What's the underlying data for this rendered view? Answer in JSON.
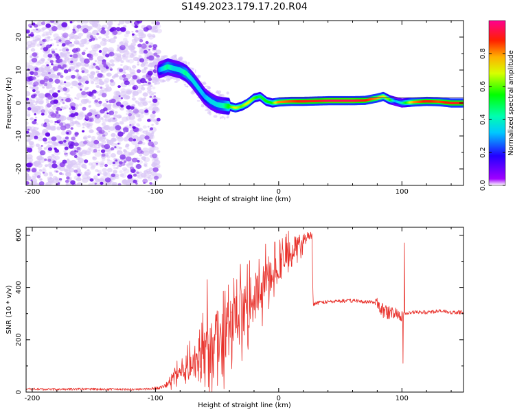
{
  "title": "S149.2023.179.17.20.R04",
  "colors": {
    "snr_line": "#e8302a",
    "dot_purple": "#7a1fe0",
    "dot_light": "#d9c6f6",
    "axes": "#000000"
  },
  "colorbar": {
    "label": "Normalized spectral amplitude",
    "ticks": [
      "0.0",
      "0.2",
      "0.4",
      "0.6",
      "0.8"
    ],
    "tick_values": [
      0.0,
      0.2,
      0.4,
      0.6,
      0.8
    ],
    "range": [
      0,
      1
    ],
    "colormap": "gist_rainbow_r"
  },
  "chart_data": [
    {
      "type": "heatmap",
      "title": "S149.2023.179.17.20.R04",
      "xlabel": "Height of straight line (km)",
      "ylabel": "Frequency (Hz)",
      "xlim": [
        -205,
        150
      ],
      "ylim": [
        -25,
        25
      ],
      "xticks": [
        -200,
        -100,
        0,
        100
      ],
      "xtick_labels": [
        "-200",
        "-100",
        "0",
        "100"
      ],
      "yticks": [
        -20,
        -10,
        0,
        10,
        20
      ],
      "ytick_labels": [
        "-20",
        "-10",
        "0",
        "10",
        "20"
      ],
      "noise_region_x": [
        -205,
        -97
      ],
      "ridge": {
        "x": [
          -97,
          -90,
          -85,
          -80,
          -75,
          -70,
          -65,
          -60,
          -55,
          -50,
          -45,
          -40,
          -35,
          -30,
          -25,
          -20,
          -15,
          -10,
          -5,
          0,
          10,
          20,
          30,
          40,
          50,
          60,
          70,
          80,
          85,
          90,
          95,
          100,
          110,
          120,
          130,
          140,
          150
        ],
        "freq": [
          10,
          11,
          10.5,
          10,
          9,
          7,
          4.5,
          2,
          0.5,
          -0.5,
          -0.8,
          -1,
          -1.5,
          -1,
          0,
          1.5,
          2,
          0.5,
          0,
          0.3,
          0.5,
          0.5,
          0.6,
          0.7,
          0.7,
          0.7,
          0.8,
          1.5,
          2,
          1,
          0.5,
          0,
          0.3,
          0.5,
          0.4,
          0,
          0
        ],
        "amplitude": [
          0.25,
          0.45,
          0.35,
          0.35,
          0.45,
          0.35,
          0.35,
          0.3,
          0.35,
          0.35,
          0.4,
          0.55,
          0.7,
          0.6,
          0.7,
          0.6,
          0.5,
          0.55,
          0.55,
          0.8,
          0.85,
          0.9,
          0.9,
          0.95,
          0.95,
          0.95,
          0.9,
          0.8,
          0.7,
          0.6,
          0.3,
          0.4,
          0.8,
          0.9,
          0.85,
          0.9,
          0.9
        ]
      },
      "grid": false
    },
    {
      "type": "line",
      "xlabel": "Height of straight line (km)",
      "ylabel": "SNR (10 * v/v)",
      "xlim": [
        -205,
        150
      ],
      "ylim": [
        0,
        630
      ],
      "xticks": [
        -200,
        -100,
        0,
        100
      ],
      "xtick_labels": [
        "-200",
        "-100",
        "0",
        "100"
      ],
      "yticks": [
        0,
        200,
        400,
        600
      ],
      "ytick_labels": [
        "0",
        "200",
        "400",
        "600"
      ],
      "series": [
        {
          "color": "#e8302a",
          "x": [
            -205,
            -180,
            -160,
            -140,
            -120,
            -105,
            -95,
            -90,
            -85,
            -80,
            -75,
            -70,
            -65,
            -60,
            -58,
            -55,
            -50,
            -45,
            -40,
            -35,
            -30,
            -25,
            -20,
            -15,
            -10,
            -5,
            0,
            5,
            10,
            15,
            20,
            25,
            27,
            28,
            30,
            40,
            50,
            60,
            70,
            75,
            80,
            85,
            90,
            95,
            100,
            101,
            102,
            103,
            104,
            105,
            110,
            120,
            130,
            140,
            150
          ],
          "values": [
            12,
            10,
            12,
            11,
            10,
            12,
            18,
            30,
            60,
            80,
            95,
            110,
            130,
            150,
            430,
            160,
            200,
            210,
            240,
            260,
            300,
            330,
            360,
            390,
            420,
            460,
            480,
            510,
            540,
            560,
            580,
            600,
            620,
            335,
            340,
            345,
            348,
            350,
            345,
            345,
            340,
            310,
            300,
            305,
            290,
            110,
            570,
            300,
            305,
            300,
            305,
            305,
            310,
            305,
            305
          ],
          "trend": [
            12,
            10,
            12,
            11,
            10,
            12,
            18,
            30,
            60,
            80,
            95,
            110,
            130,
            150,
            170,
            160,
            200,
            210,
            240,
            260,
            300,
            330,
            360,
            390,
            420,
            460,
            480,
            510,
            540,
            560,
            580,
            600,
            600,
            335,
            340,
            345,
            348,
            350,
            345,
            345,
            340,
            310,
            300,
            305,
            290,
            290,
            300,
            300,
            305,
            300,
            305,
            305,
            310,
            305,
            305
          ],
          "volatility": [
            6,
            6,
            6,
            6,
            6,
            6,
            10,
            20,
            40,
            60,
            70,
            90,
            110,
            140,
            140,
            150,
            160,
            170,
            180,
            160,
            140,
            140,
            130,
            120,
            110,
            100,
            90,
            80,
            70,
            60,
            40,
            20,
            20,
            10,
            10,
            10,
            10,
            10,
            10,
            10,
            30,
            40,
            40,
            30,
            30,
            30,
            30,
            20,
            10,
            10,
            10,
            10,
            10,
            10,
            10
          ]
        }
      ],
      "grid": false
    }
  ]
}
